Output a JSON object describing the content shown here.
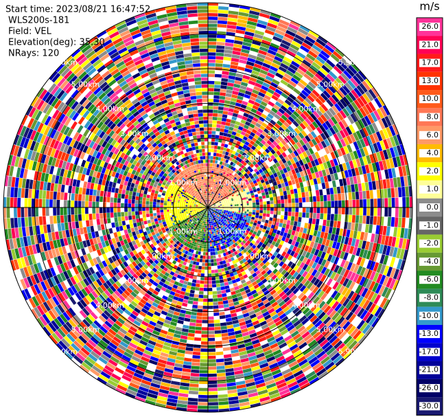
{
  "header": {
    "lines": [
      "Start time: 2023/08/21 16:47:52",
      "WLS200s-181",
      "Field: VEL",
      "Elevation(deg): 35.30",
      "NRays: 120"
    ]
  },
  "range_rings": [
    {
      "value": 1,
      "label": "1.00km"
    },
    {
      "value": 2,
      "label": "2.00km"
    },
    {
      "value": 3,
      "label": "3.00km"
    },
    {
      "value": 4,
      "label": "4.00km"
    },
    {
      "value": 5,
      "label": "5.00km"
    },
    {
      "value": 5.9,
      "label": "5.90km"
    }
  ],
  "colorbar": {
    "title": "m/s",
    "ticks": [
      {
        "value": 26,
        "label": "26.0"
      },
      {
        "value": 21,
        "label": "21.0"
      },
      {
        "value": 17,
        "label": "17.0"
      },
      {
        "value": 13,
        "label": "13.0"
      },
      {
        "value": 10,
        "label": "10.0"
      },
      {
        "value": 8,
        "label": "8.0"
      },
      {
        "value": 6,
        "label": "6.0"
      },
      {
        "value": 4,
        "label": "4.0"
      },
      {
        "value": 2,
        "label": "2.0"
      },
      {
        "value": 1,
        "label": "1.0"
      },
      {
        "value": 0,
        "label": "0.0"
      },
      {
        "value": -1,
        "label": "-1.0"
      },
      {
        "value": -2,
        "label": "-2.0"
      },
      {
        "value": -4,
        "label": "-4.0"
      },
      {
        "value": -6,
        "label": "-6.0"
      },
      {
        "value": -8,
        "label": "-8.0"
      },
      {
        "value": -10,
        "label": "-10.0"
      },
      {
        "value": -13,
        "label": "-13.0"
      },
      {
        "value": -17,
        "label": "-17.0"
      },
      {
        "value": -21,
        "label": "-21.0"
      },
      {
        "value": -26,
        "label": "-26.0"
      },
      {
        "value": -30,
        "label": "-30.0"
      }
    ],
    "colors": [
      "#ff3399",
      "#ff0055",
      "#ff1a1a",
      "#ff3300",
      "#ff5a1a",
      "#ff7755",
      "#ff9966",
      "#ffbb00",
      "#ffff00",
      "#ffff99",
      "#8c8c8c",
      "#666666",
      "#99cc33",
      "#669933",
      "#228b22",
      "#2e8b57",
      "#3399cc",
      "#0000ff",
      "#0000cc",
      "#000099",
      "#000066",
      "#191970"
    ]
  }
}
